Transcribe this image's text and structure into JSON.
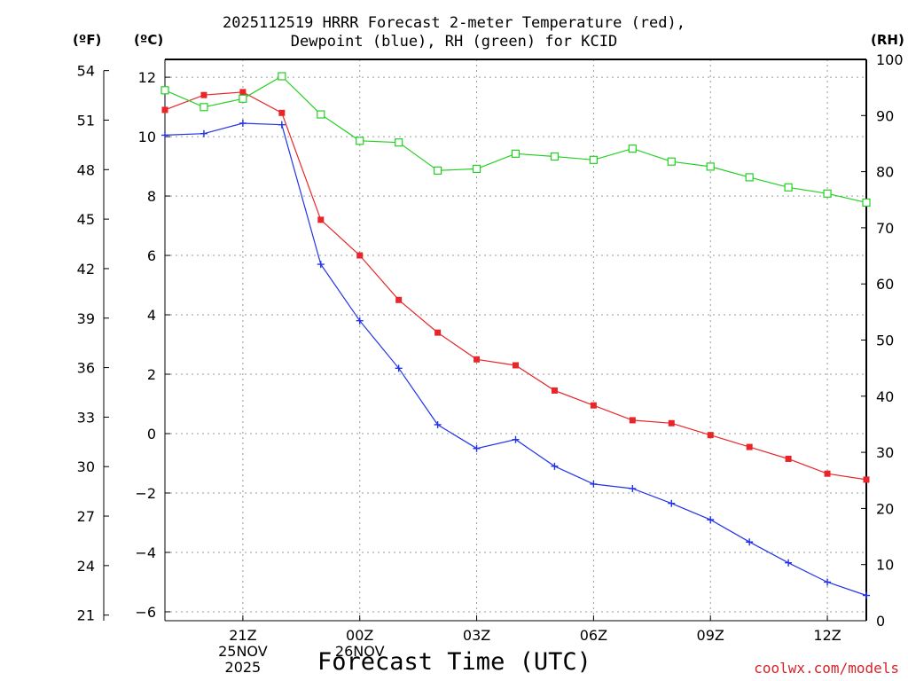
{
  "chart_data": {
    "type": "line",
    "title_line1": "2025112519 HRRR Forecast 2-meter Temperature (red),",
    "title_line2": "Dewpoint (blue), RH (green) for KCID",
    "xlabel": "Forecast Time (UTC)",
    "units": {
      "fahrenheit": "(ºF)",
      "celsius": "(ºC)",
      "rh": "(RH)"
    },
    "x_hours": [
      19,
      20,
      21,
      22,
      23,
      24,
      25,
      26,
      27,
      28,
      29,
      30,
      31,
      32,
      33,
      34,
      35,
      36,
      37
    ],
    "xlim": [
      19,
      37
    ],
    "x_ticks": [
      {
        "hour": 21,
        "lines": [
          "21Z",
          "25NOV",
          "2025"
        ]
      },
      {
        "hour": 24,
        "lines": [
          "00Z",
          "26NOV"
        ]
      },
      {
        "hour": 27,
        "lines": [
          "03Z"
        ]
      },
      {
        "hour": 30,
        "lines": [
          "06Z"
        ]
      },
      {
        "hour": 33,
        "lines": [
          "09Z"
        ]
      },
      {
        "hour": 36,
        "lines": [
          "12Z"
        ]
      }
    ],
    "ylim_celsius": [
      -6.3,
      12.6
    ],
    "y_ticks_celsius": [
      -6,
      -4,
      -2,
      0,
      2,
      4,
      6,
      8,
      10,
      12
    ],
    "y_ticks_fahrenheit": [
      21,
      24,
      27,
      30,
      33,
      36,
      39,
      42,
      45,
      48,
      51,
      54
    ],
    "ylim_rh": [
      0,
      100
    ],
    "y_ticks_rh": [
      0,
      10,
      20,
      30,
      40,
      50,
      60,
      70,
      80,
      90,
      100
    ],
    "series": [
      {
        "name": "Temperature",
        "unit": "C",
        "color": "#e8262a",
        "marker": "filled-square",
        "values": [
          10.9,
          11.4,
          11.5,
          10.8,
          7.2,
          6.0,
          4.5,
          3.4,
          2.5,
          2.3,
          1.45,
          0.95,
          0.45,
          0.35,
          -0.05,
          -0.45,
          -0.85,
          -1.35,
          -1.55
        ]
      },
      {
        "name": "Dewpoint",
        "unit": "C",
        "color": "#2233e8",
        "marker": "plus",
        "values": [
          10.05,
          10.1,
          10.45,
          10.4,
          5.7,
          3.8,
          2.2,
          0.3,
          -0.5,
          -0.2,
          -1.1,
          -1.7,
          -1.85,
          -2.35,
          -2.9,
          -3.65,
          -4.35,
          -5.0,
          -5.45
        ]
      },
      {
        "name": "RH",
        "unit": "%",
        "color": "#22d022",
        "marker": "open-square",
        "values": [
          94.5,
          91.5,
          93.0,
          97.0,
          90.2,
          85.5,
          85.2,
          80.2,
          80.5,
          83.2,
          82.7,
          82.1,
          84.1,
          81.8,
          80.9,
          79.0,
          77.2,
          76.1,
          74.5
        ]
      }
    ]
  },
  "credit": "coolwx.com/models"
}
